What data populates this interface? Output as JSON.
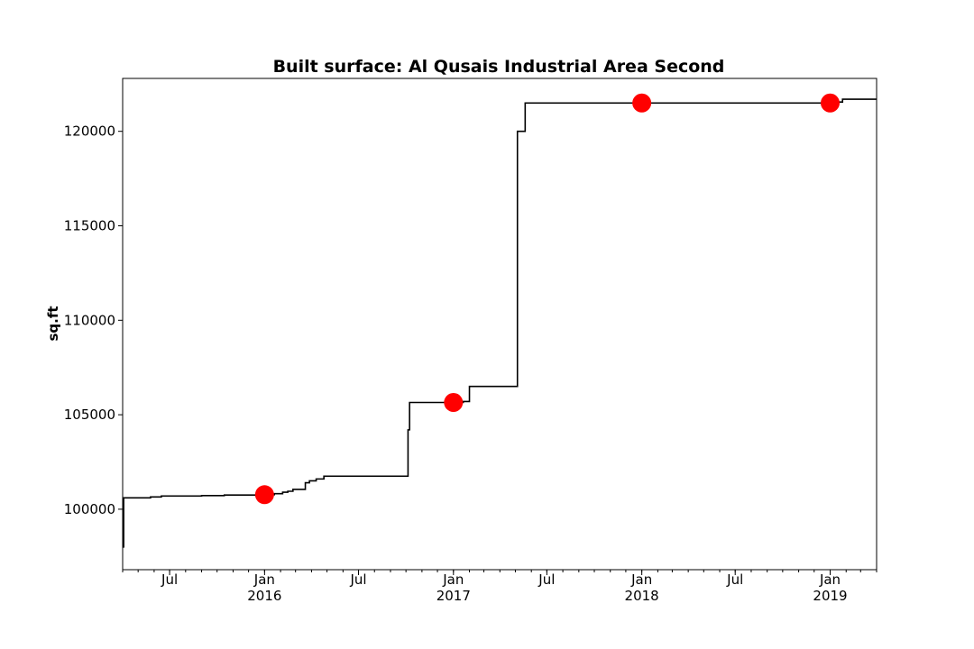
{
  "chart_data": {
    "type": "line",
    "title": "Built surface: Al Qusais Industrial Area Second",
    "xlabel": "",
    "ylabel": "sq.ft",
    "x_type": "date",
    "xlim": [
      "2015-04-01",
      "2019-04-01"
    ],
    "ylim": [
      96800,
      122800
    ],
    "y_ticks": [
      100000,
      105000,
      110000,
      115000,
      120000
    ],
    "x_major_ticks": [
      {
        "date": "2015-07-01",
        "label": "Jul",
        "year": ""
      },
      {
        "date": "2016-01-01",
        "label": "Jan",
        "year": "2016"
      },
      {
        "date": "2016-07-01",
        "label": "Jul",
        "year": ""
      },
      {
        "date": "2017-01-01",
        "label": "Jan",
        "year": "2017"
      },
      {
        "date": "2017-07-01",
        "label": "Jul",
        "year": ""
      },
      {
        "date": "2018-01-01",
        "label": "Jan",
        "year": "2018"
      },
      {
        "date": "2018-07-01",
        "label": "Jul",
        "year": ""
      },
      {
        "date": "2019-01-01",
        "label": "Jan",
        "year": "2019"
      }
    ],
    "grid": false,
    "legend": "none",
    "series": [
      {
        "color": "#000000",
        "step": true,
        "points": [
          [
            "2015-04-01",
            98000
          ],
          [
            "2015-04-03",
            100600
          ],
          [
            "2015-05-25",
            100650
          ],
          [
            "2015-06-15",
            100700
          ],
          [
            "2015-08-20",
            100700
          ],
          [
            "2015-09-01",
            100720
          ],
          [
            "2015-10-15",
            100750
          ],
          [
            "2016-01-01",
            100770
          ],
          [
            "2016-01-20",
            100820
          ],
          [
            "2016-02-05",
            100900
          ],
          [
            "2016-02-15",
            100950
          ],
          [
            "2016-02-25",
            101050
          ],
          [
            "2016-03-20",
            101400
          ],
          [
            "2016-03-28",
            101500
          ],
          [
            "2016-04-10",
            101600
          ],
          [
            "2016-04-25",
            101750
          ],
          [
            "2016-10-05",
            104200
          ],
          [
            "2016-10-08",
            105650
          ],
          [
            "2017-01-20",
            105700
          ],
          [
            "2017-02-01",
            106500
          ],
          [
            "2017-05-05",
            120000
          ],
          [
            "2017-05-20",
            121500
          ],
          [
            "2019-01-05",
            121550
          ],
          [
            "2019-01-25",
            121700
          ],
          [
            "2019-04-01",
            121700
          ]
        ]
      }
    ],
    "markers": {
      "color": "#ff0000",
      "points": [
        [
          "2016-01-01",
          100770
        ],
        [
          "2017-01-01",
          105650
        ],
        [
          "2018-01-01",
          121500
        ],
        [
          "2019-01-01",
          121500
        ]
      ]
    }
  }
}
